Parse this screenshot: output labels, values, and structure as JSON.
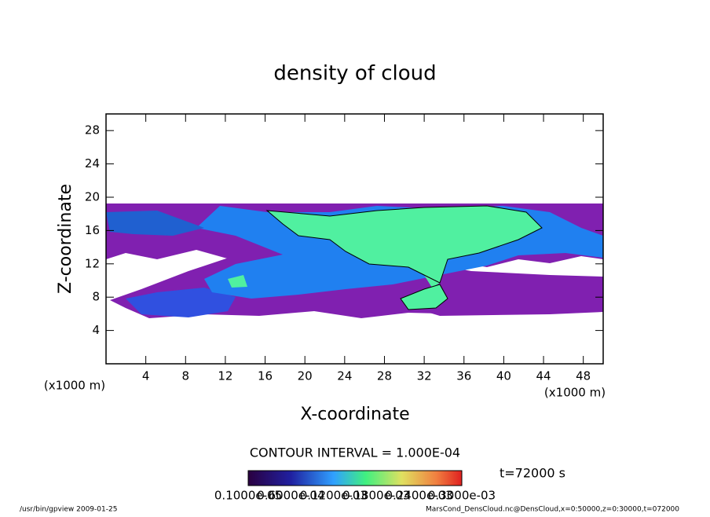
{
  "chart_data": {
    "type": "contour",
    "title": "density of cloud",
    "x_label": "X-coordinate",
    "y_label": "Z-coordinate",
    "x_unit": "(x1000 m)",
    "y_unit": "(x1000 m)",
    "xlim": [
      0,
      50
    ],
    "xticks": [
      4,
      8,
      12,
      16,
      20,
      24,
      28,
      32,
      36,
      40,
      44,
      48
    ],
    "ylim": [
      0,
      30
    ],
    "yticks": [
      4,
      8,
      12,
      16,
      20,
      24,
      28
    ],
    "contour_interval": "CONTOUR INTERVAL = 1.000E-04",
    "time_label": "t=72000 s",
    "colorbar_labels": [
      "0.1000e-05",
      "0.6000e-04",
      "0.1200e-03",
      "0.1800e-03",
      "0.2400e-03",
      "0.3000e-03"
    ],
    "footer_left": "/usr/bin/gpview  2009-01-25",
    "footer_right": "MarsCond_DensCloud.nc@DensCloud,x=0:50000,z=0:30000,t=072000"
  }
}
